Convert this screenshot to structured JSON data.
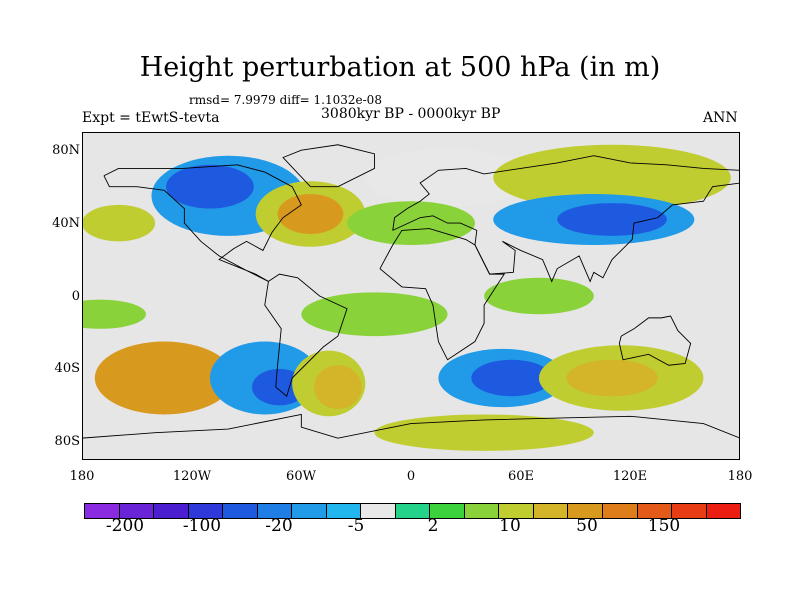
{
  "title": "Height perturbation at 500 hPa (in m)",
  "stats": "rmsd= 7.9979 diff= 1.1032e-08",
  "experiment": "Expt = tEwtS-tevta",
  "period": "3080kyr BP - 0000kyr BP",
  "season": "ANN",
  "map": {
    "lat_labels": [
      "80N",
      "40N",
      "0",
      "40S",
      "80S"
    ],
    "lon_labels": [
      "180",
      "120W",
      "60W",
      "0",
      "60E",
      "120E",
      "180"
    ],
    "background_color": "#e6e6e6",
    "blobs": [
      {
        "lon": -135,
        "lat": -45,
        "rx": 38,
        "ry": 20,
        "value": 50
      },
      {
        "lon": -135,
        "lat": -45,
        "rx": 26,
        "ry": 13,
        "value": 90
      },
      {
        "lon": -80,
        "lat": -45,
        "rx": 30,
        "ry": 20,
        "value": -20
      },
      {
        "lon": -72,
        "lat": -50,
        "rx": 15,
        "ry": 10,
        "value": -60
      },
      {
        "lon": -45,
        "lat": -48,
        "rx": 20,
        "ry": 18,
        "value": 10
      },
      {
        "lon": -40,
        "lat": -50,
        "rx": 13,
        "ry": 12,
        "value": 40
      },
      {
        "lon": 50,
        "lat": -45,
        "rx": 35,
        "ry": 16,
        "value": -20
      },
      {
        "lon": 55,
        "lat": -45,
        "rx": 22,
        "ry": 10,
        "value": -60
      },
      {
        "lon": 115,
        "lat": -45,
        "rx": 45,
        "ry": 18,
        "value": 10
      },
      {
        "lon": 110,
        "lat": -45,
        "rx": 25,
        "ry": 10,
        "value": 40
      },
      {
        "lon": -100,
        "lat": 55,
        "rx": 42,
        "ry": 22,
        "value": -20
      },
      {
        "lon": -110,
        "lat": 60,
        "rx": 24,
        "ry": 12,
        "value": -60
      },
      {
        "lon": -55,
        "lat": 45,
        "rx": 30,
        "ry": 18,
        "value": 10
      },
      {
        "lon": -55,
        "lat": 45,
        "rx": 18,
        "ry": 11,
        "value": 50
      },
      {
        "lon": 20,
        "lat": 65,
        "rx": 45,
        "ry": 16,
        "value": -5
      },
      {
        "lon": 0,
        "lat": 40,
        "rx": 35,
        "ry": 12,
        "value": 5
      },
      {
        "lon": 110,
        "lat": 65,
        "rx": 65,
        "ry": 18,
        "value": 10
      },
      {
        "lon": 100,
        "lat": 42,
        "rx": 55,
        "ry": 14,
        "value": -20
      },
      {
        "lon": 110,
        "lat": 42,
        "rx": 30,
        "ry": 9,
        "value": -60
      },
      {
        "lon": -20,
        "lat": -10,
        "rx": 40,
        "ry": 12,
        "value": 5
      },
      {
        "lon": 70,
        "lat": 0,
        "rx": 30,
        "ry": 10,
        "value": 5
      },
      {
        "lon": 40,
        "lat": -75,
        "rx": 60,
        "ry": 10,
        "value": 10
      },
      {
        "lon": -160,
        "lat": 40,
        "rx": 20,
        "ry": 10,
        "value": 10
      },
      {
        "lon": -170,
        "lat": -10,
        "rx": 25,
        "ry": 8,
        "value": 5
      }
    ]
  },
  "colorbar": {
    "colors": [
      "#8a2be2",
      "#6a24d8",
      "#4b1fd0",
      "#2f38d8",
      "#1e5ae0",
      "#1e7ee6",
      "#219ae8",
      "#22b6ee",
      "#e8e8e8",
      "#24d28a",
      "#3cd23c",
      "#8ad23a",
      "#c0cd30",
      "#d4b428",
      "#d89a1e",
      "#e07d1b",
      "#e45a18",
      "#e83c14",
      "#ec1e12"
    ],
    "labels": [
      "-200",
      "-100",
      "-20",
      "-5",
      "2",
      "10",
      "50",
      "150"
    ],
    "thresholds": [
      -200,
      -150,
      -100,
      -50,
      -20,
      -10,
      -5,
      -2,
      2,
      5,
      10,
      20,
      50,
      100,
      150,
      200
    ]
  }
}
